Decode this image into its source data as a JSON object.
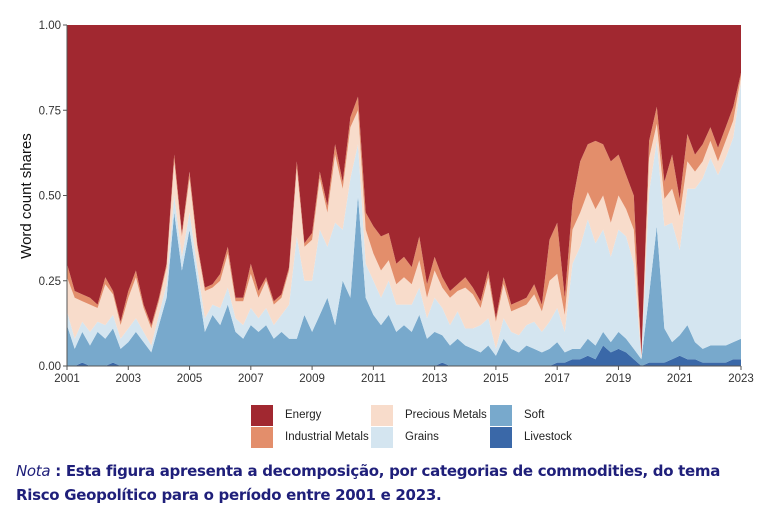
{
  "chart_data": {
    "type": "area",
    "stacked": true,
    "xlabel": "",
    "ylabel": "Word count shares",
    "xlim": [
      2001,
      2023
    ],
    "ylim": [
      0,
      1
    ],
    "x_ticks": [
      "2001",
      "2003",
      "2005",
      "2007",
      "2009",
      "2011",
      "2013",
      "2015",
      "2017",
      "2019",
      "2021",
      "2023"
    ],
    "y_ticks": [
      "0.00",
      "0.25",
      "0.50",
      "0.75",
      "1.00"
    ],
    "grid": false,
    "legend_position": "bottom",
    "x": [
      2001,
      2001.25,
      2001.5,
      2001.75,
      2002,
      2002.25,
      2002.5,
      2002.75,
      2003,
      2003.25,
      2003.5,
      2003.75,
      2004,
      2004.25,
      2004.5,
      2004.75,
      2005,
      2005.25,
      2005.5,
      2005.75,
      2006,
      2006.25,
      2006.5,
      2006.75,
      2007,
      2007.25,
      2007.5,
      2007.75,
      2008,
      2008.25,
      2008.5,
      2008.75,
      2009,
      2009.25,
      2009.5,
      2009.75,
      2010,
      2010.25,
      2010.5,
      2010.75,
      2011,
      2011.25,
      2011.5,
      2011.75,
      2012,
      2012.25,
      2012.5,
      2012.75,
      2013,
      2013.25,
      2013.5,
      2013.75,
      2014,
      2014.25,
      2014.5,
      2014.75,
      2015,
      2015.25,
      2015.5,
      2015.75,
      2016,
      2016.25,
      2016.5,
      2016.75,
      2017,
      2017.25,
      2017.5,
      2017.75,
      2018,
      2018.25,
      2018.5,
      2018.75,
      2019,
      2019.25,
      2019.5,
      2019.75,
      2020,
      2020.25,
      2020.5,
      2020.75,
      2021,
      2021.25,
      2021.5,
      2021.75,
      2022,
      2022.25,
      2022.5,
      2022.75,
      2023
    ],
    "series": [
      {
        "name": "Livestock",
        "color": "#3a68a8",
        "values": [
          0,
          0,
          0.01,
          0,
          0,
          0,
          0.01,
          0,
          0,
          0,
          0,
          0,
          0,
          0,
          0,
          0,
          0,
          0,
          0,
          0,
          0,
          0,
          0,
          0,
          0,
          0,
          0,
          0,
          0,
          0,
          0,
          0,
          0,
          0,
          0,
          0,
          0,
          0,
          0,
          0,
          0,
          0,
          0,
          0,
          0,
          0,
          0,
          0,
          0,
          0.01,
          0,
          0,
          0,
          0,
          0,
          0,
          0,
          0,
          0,
          0,
          0,
          0,
          0,
          0,
          0.01,
          0.01,
          0.02,
          0.02,
          0.03,
          0.02,
          0.06,
          0.04,
          0.05,
          0.04,
          0.02,
          0,
          0.01,
          0.01,
          0.01,
          0.02,
          0.03,
          0.02,
          0.02,
          0.01,
          0.01,
          0.01,
          0.01,
          0.02,
          0.02
        ]
      },
      {
        "name": "Soft",
        "color": "#78a9cc",
        "values": [
          0.12,
          0.05,
          0.09,
          0.06,
          0.1,
          0.08,
          0.1,
          0.05,
          0.07,
          0.1,
          0.07,
          0.04,
          0.12,
          0.2,
          0.45,
          0.28,
          0.4,
          0.25,
          0.1,
          0.15,
          0.12,
          0.18,
          0.1,
          0.08,
          0.12,
          0.1,
          0.12,
          0.08,
          0.1,
          0.08,
          0.08,
          0.15,
          0.1,
          0.15,
          0.2,
          0.12,
          0.25,
          0.2,
          0.5,
          0.2,
          0.15,
          0.12,
          0.15,
          0.1,
          0.12,
          0.1,
          0.15,
          0.08,
          0.1,
          0.08,
          0.06,
          0.08,
          0.06,
          0.05,
          0.04,
          0.06,
          0.03,
          0.08,
          0.05,
          0.04,
          0.06,
          0.05,
          0.04,
          0.05,
          0.06,
          0.03,
          0.03,
          0.03,
          0.05,
          0.04,
          0.04,
          0.03,
          0.05,
          0.04,
          0.03,
          0.02,
          0.2,
          0.4,
          0.1,
          0.05,
          0.06,
          0.1,
          0.05,
          0.04,
          0.05,
          0.05,
          0.05,
          0.05,
          0.06
        ]
      },
      {
        "name": "Grains",
        "color": "#d4e5f0",
        "values": [
          0.04,
          0.03,
          0.03,
          0.04,
          0.03,
          0.04,
          0.04,
          0.03,
          0.04,
          0.04,
          0.03,
          0.02,
          0.03,
          0.04,
          0.05,
          0.04,
          0.05,
          0.04,
          0.04,
          0.03,
          0.05,
          0.05,
          0.04,
          0.04,
          0.05,
          0.04,
          0.05,
          0.04,
          0.05,
          0.1,
          0.3,
          0.1,
          0.15,
          0.25,
          0.15,
          0.3,
          0.15,
          0.35,
          0.15,
          0.1,
          0.1,
          0.08,
          0.1,
          0.08,
          0.06,
          0.08,
          0.08,
          0.06,
          0.1,
          0.08,
          0.06,
          0.08,
          0.05,
          0.06,
          0.08,
          0.08,
          0.02,
          0.06,
          0.05,
          0.05,
          0.06,
          0.08,
          0.06,
          0.08,
          0.1,
          0.06,
          0.25,
          0.3,
          0.35,
          0.3,
          0.3,
          0.25,
          0.3,
          0.3,
          0.25,
          0,
          0.3,
          0.25,
          0.3,
          0.35,
          0.25,
          0.4,
          0.45,
          0.5,
          0.55,
          0.5,
          0.55,
          0.6,
          0.75
        ]
      },
      {
        "name": "Precious Metals",
        "color": "#f8dccb",
        "values": [
          0.1,
          0.12,
          0.06,
          0.08,
          0.04,
          0.12,
          0.06,
          0.04,
          0.09,
          0.12,
          0.07,
          0.05,
          0.04,
          0.05,
          0.1,
          0.06,
          0.1,
          0.06,
          0.08,
          0.05,
          0.08,
          0.1,
          0.05,
          0.07,
          0.1,
          0.06,
          0.08,
          0.06,
          0.05,
          0.1,
          0.2,
          0.1,
          0.12,
          0.15,
          0.1,
          0.2,
          0.12,
          0.15,
          0.1,
          0.1,
          0.08,
          0.08,
          0.06,
          0.06,
          0.08,
          0.06,
          0.08,
          0.06,
          0.08,
          0.06,
          0.08,
          0.06,
          0.12,
          0.1,
          0.05,
          0.12,
          0.08,
          0.1,
          0.06,
          0.08,
          0.06,
          0.08,
          0.06,
          0.12,
          0.1,
          0.05,
          0.1,
          0.1,
          0.08,
          0.1,
          0.1,
          0.1,
          0.1,
          0.08,
          0.1,
          0.01,
          0.1,
          0.05,
          0.08,
          0.1,
          0.1,
          0.08,
          0.05,
          0.05,
          0.05,
          0.04,
          0.05,
          0.05,
          0.02
        ]
      },
      {
        "name": "Industrial Metals",
        "color": "#e38e6b",
        "values": [
          0.04,
          0.02,
          0.02,
          0.02,
          0.01,
          0.02,
          0.01,
          0.01,
          0.02,
          0.02,
          0.01,
          0.01,
          0.01,
          0.01,
          0.02,
          0.01,
          0.02,
          0.01,
          0.01,
          0.01,
          0.02,
          0.02,
          0.01,
          0.01,
          0.03,
          0.02,
          0.01,
          0.01,
          0.01,
          0.01,
          0.02,
          0.01,
          0.02,
          0.02,
          0.02,
          0.03,
          0.02,
          0.03,
          0.04,
          0.05,
          0.08,
          0.1,
          0.08,
          0.06,
          0.06,
          0.05,
          0.07,
          0.04,
          0.04,
          0.03,
          0.02,
          0.02,
          0.03,
          0.02,
          0.02,
          0.02,
          0.01,
          0.02,
          0.02,
          0.02,
          0.02,
          0.03,
          0.02,
          0.12,
          0.15,
          0.05,
          0.08,
          0.15,
          0.14,
          0.2,
          0.15,
          0.18,
          0.12,
          0.1,
          0.1,
          0,
          0.05,
          0.05,
          0.05,
          0.1,
          0.05,
          0.08,
          0.05,
          0.05,
          0.04,
          0.04,
          0.04,
          0.04,
          0.01
        ]
      },
      {
        "name": "Energy",
        "color": "#a12830",
        "values": [
          0.7,
          0.78,
          0.79,
          0.8,
          0.82,
          0.74,
          0.78,
          0.87,
          0.78,
          0.72,
          0.82,
          0.88,
          0.8,
          0.7,
          0.38,
          0.61,
          0.43,
          0.64,
          0.77,
          0.76,
          0.73,
          0.65,
          0.8,
          0.8,
          0.7,
          0.78,
          0.74,
          0.81,
          0.79,
          0.71,
          0.4,
          0.64,
          0.61,
          0.43,
          0.53,
          0.35,
          0.46,
          0.27,
          0.21,
          0.55,
          0.59,
          0.62,
          0.61,
          0.7,
          0.68,
          0.71,
          0.62,
          0.76,
          0.68,
          0.74,
          0.78,
          0.76,
          0.74,
          0.77,
          0.81,
          0.72,
          0.86,
          0.74,
          0.82,
          0.81,
          0.8,
          0.76,
          0.82,
          0.63,
          0.58,
          0.8,
          0.52,
          0.4,
          0.35,
          0.34,
          0.35,
          0.4,
          0.38,
          0.44,
          0.5,
          0.97,
          0.34,
          0.24,
          0.46,
          0.38,
          0.51,
          0.32,
          0.38,
          0.35,
          0.3,
          0.36,
          0.3,
          0.24,
          0.14
        ]
      }
    ]
  },
  "legend": {
    "items": [
      {
        "label": "Energy",
        "color": "#a12830"
      },
      {
        "label": "Precious Metals",
        "color": "#f8dccb"
      },
      {
        "label": "Soft",
        "color": "#78a9cc"
      },
      {
        "label": "Industrial Metals",
        "color": "#e38e6b"
      },
      {
        "label": "Grains",
        "color": "#d4e5f0"
      },
      {
        "label": "Livestock",
        "color": "#3a68a8"
      }
    ]
  },
  "note": {
    "label": "Nota",
    "text": " : Esta figura apresenta a decomposição, por categorias de commodities, do tema Risco Geopolítico para o período entre 2001 e 2023."
  }
}
